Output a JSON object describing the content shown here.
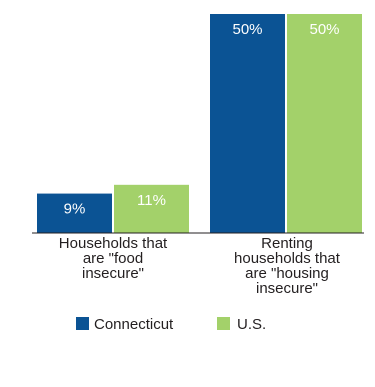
{
  "chart_data": {
    "type": "bar",
    "categories": [
      [
        "Households that",
        "are \"food",
        "insecure\""
      ],
      [
        "Renting",
        "households that",
        "are \"housing",
        "insecure\""
      ]
    ],
    "series": [
      {
        "name": "Connecticut",
        "values": [
          9,
          50
        ],
        "labels": [
          "9%",
          "50%"
        ],
        "color": "#0b5394",
        "label_color": "#ffffff"
      },
      {
        "name": "U.S.",
        "values": [
          11,
          50
        ],
        "labels": [
          "11%",
          "50%"
        ],
        "color": "#a3d16a",
        "label_color": "#ffffff"
      }
    ],
    "ylim": [
      0,
      50
    ],
    "grid": false,
    "legend_position": "bottom",
    "axis_line_color": "#231f20"
  }
}
